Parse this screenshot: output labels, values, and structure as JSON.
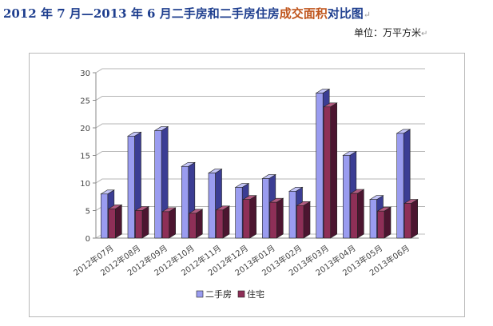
{
  "title": {
    "part1": "2012 年 7 月—2013 年 6 月二手房和二手房住房",
    "part2": "成交面积",
    "part3": "对比图",
    "mark": "↵"
  },
  "unit": {
    "text": "单位：万平方米",
    "mark": "↵"
  },
  "colors": {
    "ershoufang_front": "#9a9cf0",
    "ershoufang_side": "#3b3d94",
    "ershoufang_top": "#c3c4f7",
    "zhuzhai_front": "#8e2f57",
    "zhuzhai_side": "#4c1530",
    "zhuzhai_top": "#b05b80",
    "title_blue": "#1f3f8f",
    "title_orange": "#c0561e"
  },
  "chart_data": {
    "type": "bar",
    "categories": [
      "2012年07月",
      "2012年08月",
      "2012年09月",
      "2012年10月",
      "2012年11月",
      "2012年12月",
      "2013年01月",
      "2013年02月",
      "2013年03月",
      "2013年04月",
      "2013年05月",
      "2013年06月"
    ],
    "series": [
      {
        "name": "二手房",
        "values": [
          8,
          18.5,
          19.5,
          13,
          11.8,
          9.2,
          10.8,
          8.5,
          26.3,
          15,
          7,
          19
        ]
      },
      {
        "name": "住宅",
        "values": [
          5.3,
          5,
          4.8,
          4.5,
          5.1,
          7,
          6.5,
          5.9,
          23.8,
          8.1,
          4.9,
          6.3
        ]
      }
    ],
    "yticks": [
      0,
      5,
      10,
      15,
      20,
      25,
      30
    ],
    "ylim": [
      0,
      30
    ],
    "grid": true,
    "legend": "bottom",
    "xlabel": "",
    "ylabel": ""
  }
}
